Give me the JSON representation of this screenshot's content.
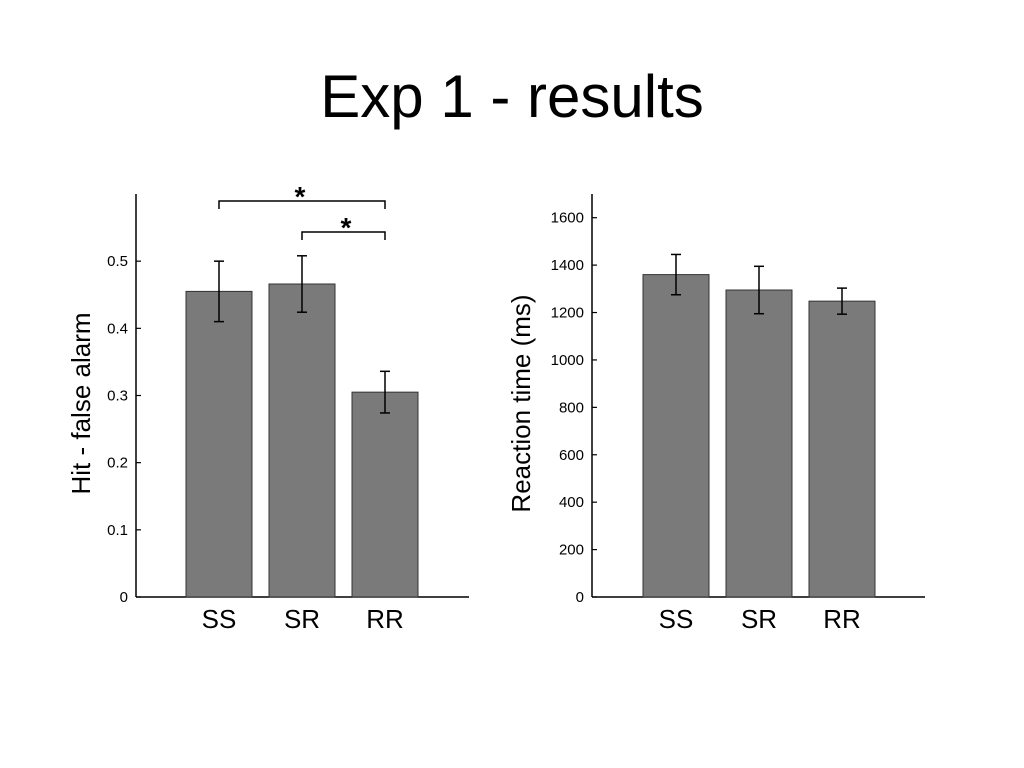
{
  "slide": {
    "title": "Exp 1 - results"
  },
  "colors": {
    "bar_fill": "#7a7a7a",
    "bar_stroke": "#333333",
    "axis": "#000000"
  },
  "chart_data": [
    {
      "type": "bar",
      "title": "",
      "xlabel": "",
      "ylabel": "Hit - false alarm",
      "categories": [
        "SS",
        "SR",
        "RR"
      ],
      "values": [
        0.455,
        0.466,
        0.305
      ],
      "error": [
        0.045,
        0.042,
        0.031
      ],
      "ylim": [
        0,
        0.6
      ],
      "yticks": [
        0,
        0.1,
        0.2,
        0.3,
        0.4,
        0.5
      ],
      "ytick_labels": [
        "0",
        "0.1",
        "0.2",
        "0.3",
        "0.4",
        "0.5"
      ],
      "significance": [
        {
          "from": "SS",
          "to": "RR",
          "label": "*"
        },
        {
          "from": "SR",
          "to": "RR",
          "label": "*"
        }
      ],
      "grid": false
    },
    {
      "type": "bar",
      "title": "",
      "xlabel": "",
      "ylabel": "Reaction time (ms)",
      "categories": [
        "SS",
        "SR",
        "RR"
      ],
      "values": [
        1360,
        1295,
        1248
      ],
      "error": [
        85,
        100,
        55
      ],
      "ylim": [
        0,
        1700
      ],
      "yticks": [
        0,
        200,
        400,
        600,
        800,
        1000,
        1200,
        1400,
        1600
      ],
      "ytick_labels": [
        "0",
        "200",
        "400",
        "600",
        "800",
        "1000",
        "1200",
        "1400",
        "1600"
      ],
      "grid": false
    }
  ]
}
